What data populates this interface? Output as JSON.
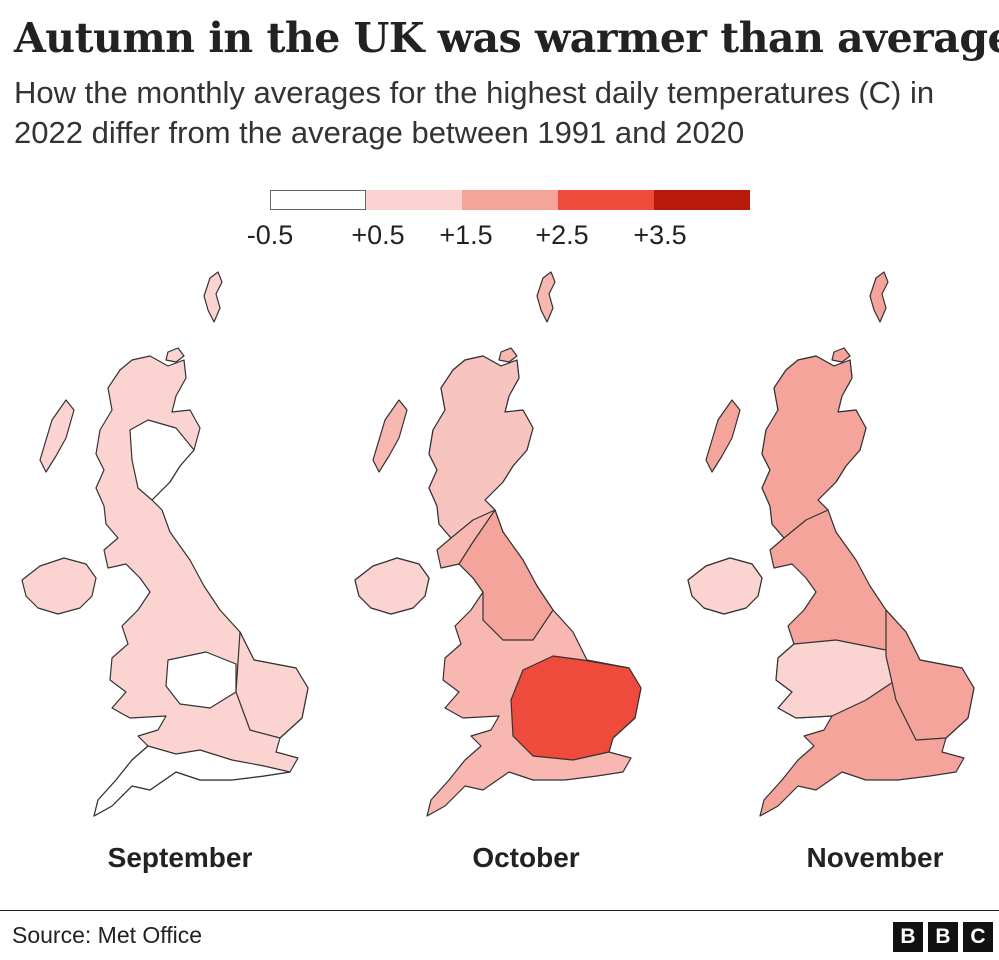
{
  "title": "Autumn in the UK was warmer than average",
  "subtitle": "How the monthly averages for the highest daily temperatures (C) in 2022 differ from the average between 1991 and 2020",
  "legend": {
    "swatches": [
      {
        "color": "#ffffff"
      },
      {
        "color": "#fbd3d1"
      },
      {
        "color": "#f5a49c"
      },
      {
        "color": "#ef4b3c"
      },
      {
        "color": "#b81a0b"
      }
    ],
    "labels": [
      "-0.5",
      "+0.5",
      "+1.5",
      "+2.5",
      "+3.5"
    ]
  },
  "maps": [
    {
      "month": "September",
      "base_color": "#fbd3d1",
      "regions": [
        {
          "area": "Scotland north-east",
          "color": "#ffffff"
        },
        {
          "area": "Midlands",
          "color": "#ffffff"
        },
        {
          "area": "South-west",
          "color": "#ffffff"
        },
        {
          "area": "East Anglia",
          "color": "#fbd3d1"
        }
      ]
    },
    {
      "month": "October",
      "base_color": "#f8b7b0",
      "regions": [
        {
          "area": "Northern Ireland",
          "color": "#fbd3d1"
        },
        {
          "area": "Scotland",
          "color": "#f8c4bf"
        },
        {
          "area": "Northern England",
          "color": "#f5a49c"
        },
        {
          "area": "South-east & East",
          "color": "#ef4b3c"
        }
      ]
    },
    {
      "month": "November",
      "base_color": "#f5a49c",
      "regions": [
        {
          "area": "Northern Ireland",
          "color": "#fbd3d1"
        },
        {
          "area": "Scotland",
          "color": "#f5a49c"
        },
        {
          "area": "Wales & Midlands",
          "color": "#fbd3d1"
        },
        {
          "area": "East England",
          "color": "#f5a49c"
        }
      ]
    }
  ],
  "source": "Source: Met Office",
  "logo": [
    "B",
    "B",
    "C"
  ]
}
